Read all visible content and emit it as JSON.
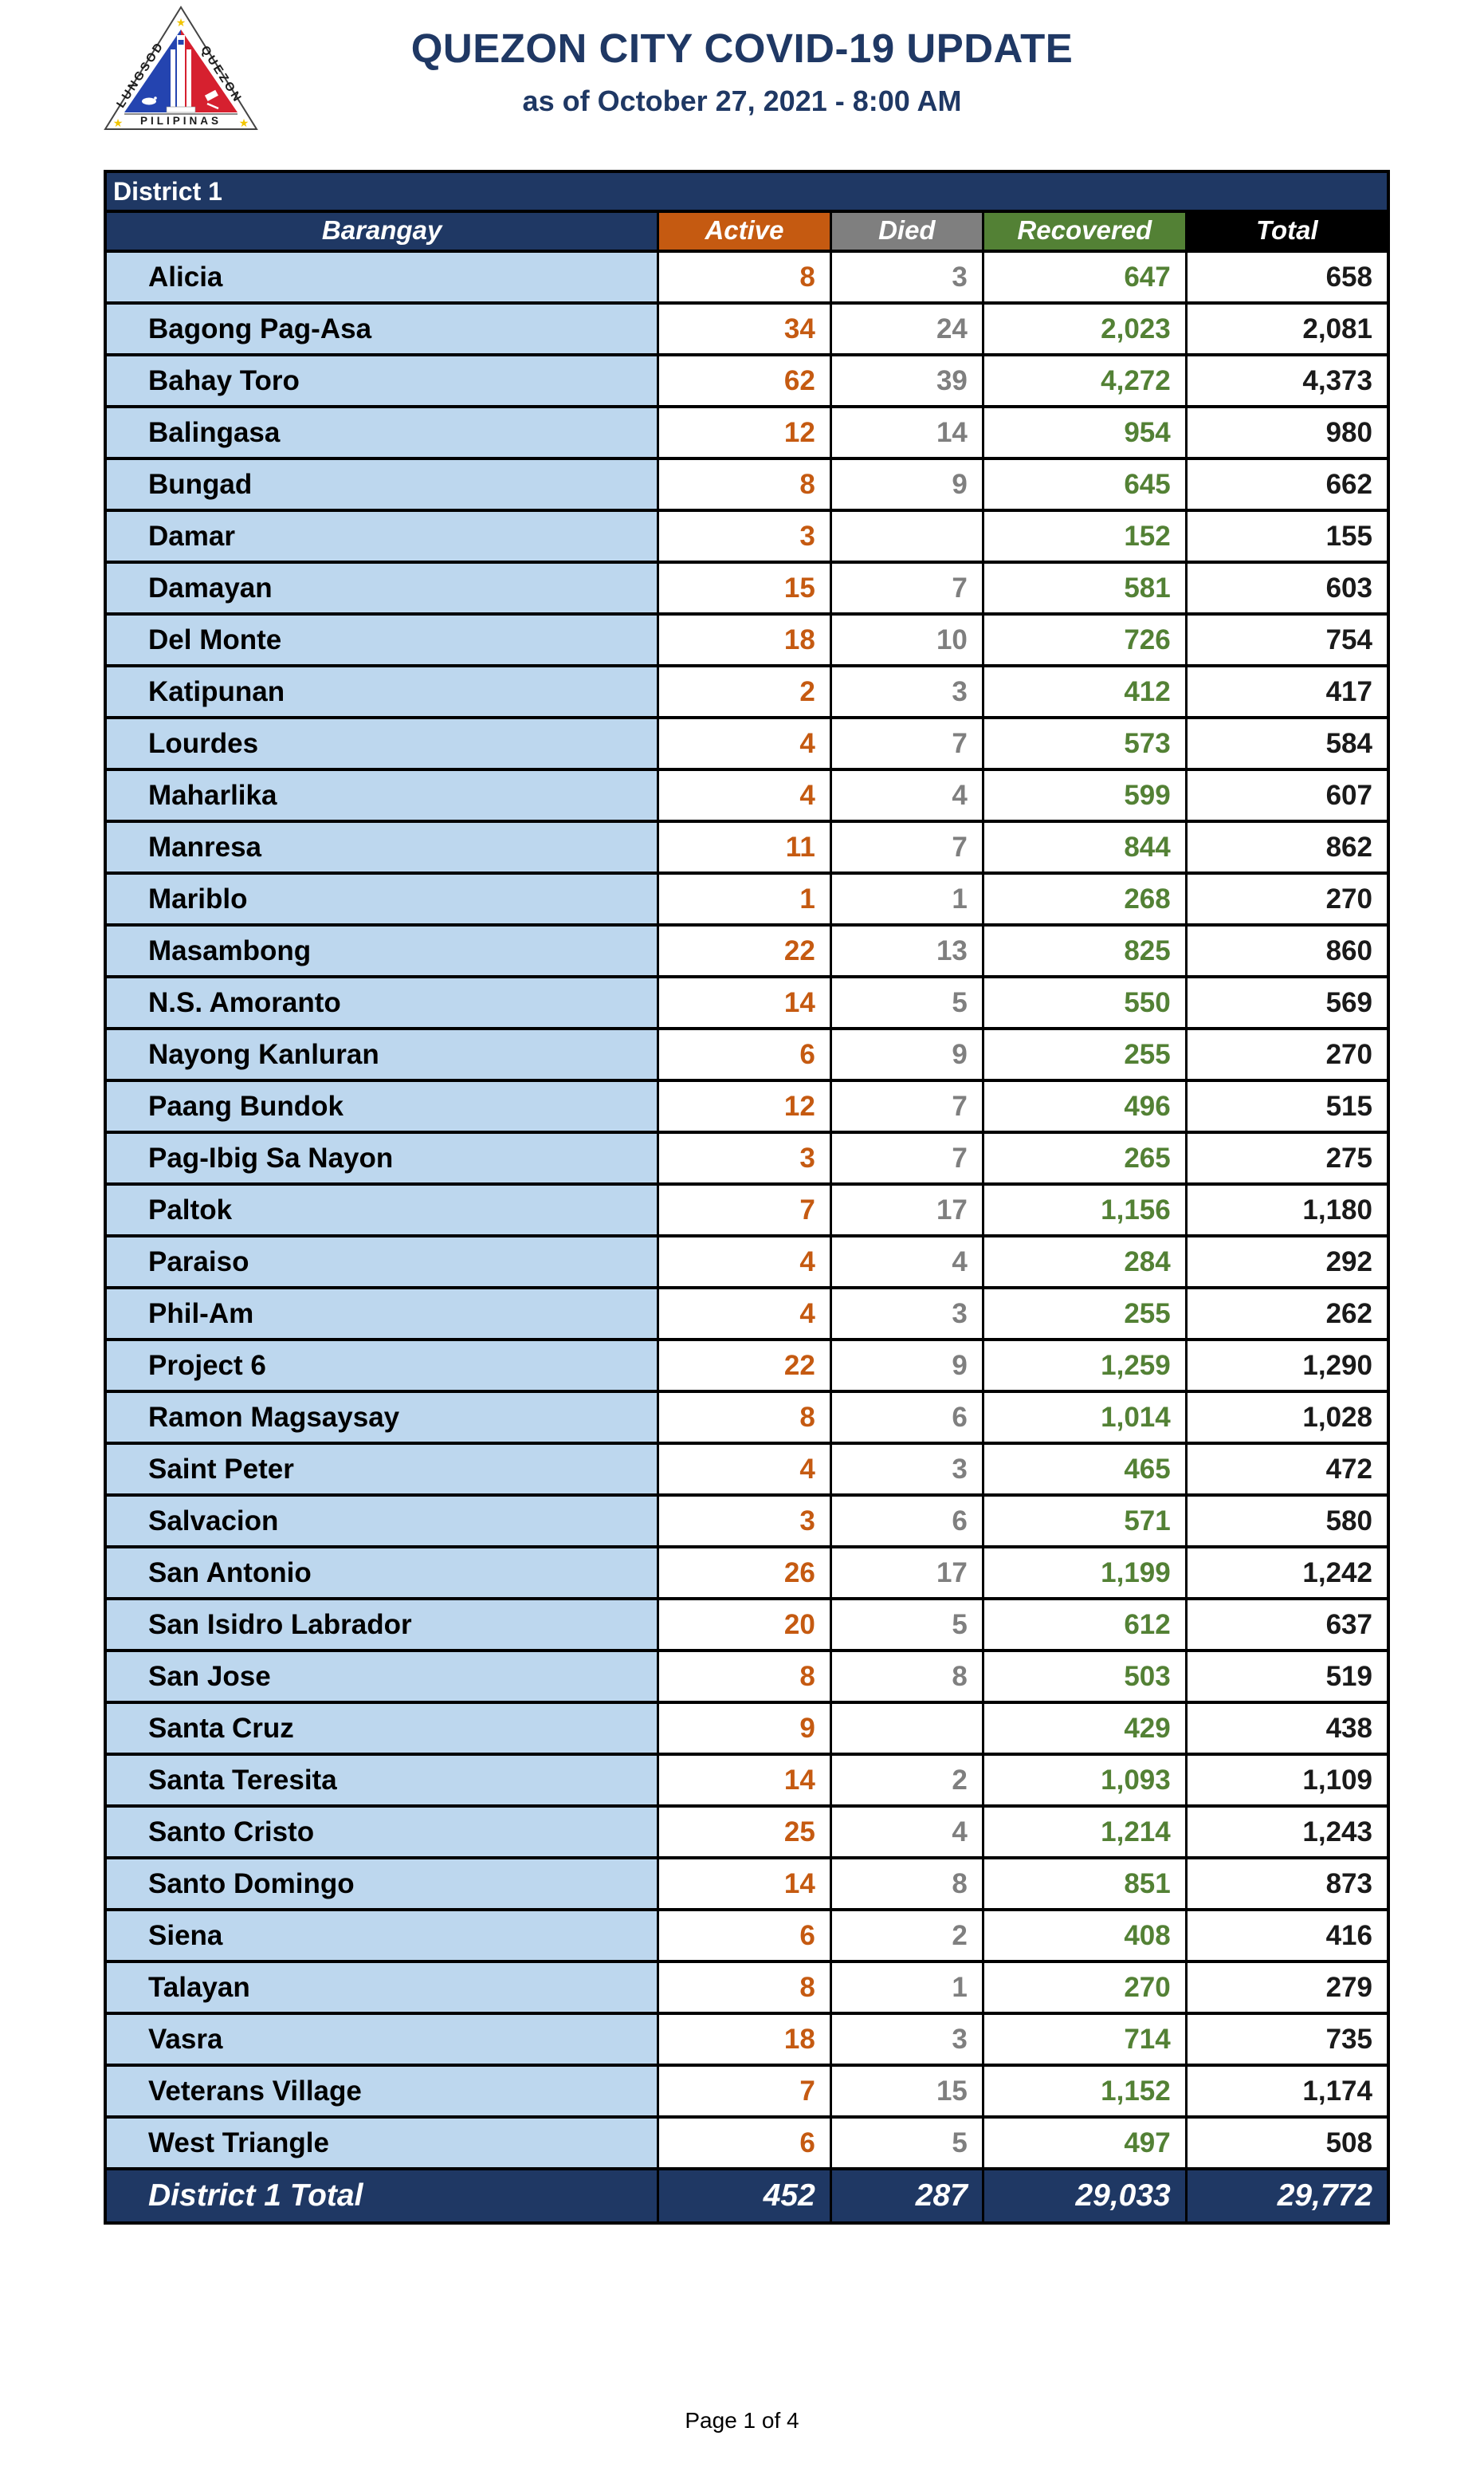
{
  "header": {
    "title": "QUEZON CITY COVID-19 UPDATE",
    "subtitle": "as of October 27, 2021 - 8:00 AM",
    "logo": {
      "left_text": "LUNGSOD",
      "right_text": "QUEZON",
      "bottom_text": "PILIPINAS"
    }
  },
  "table": {
    "district_label": "District 1",
    "columns": [
      "Barangay",
      "Active",
      "Died",
      "Recovered",
      "Total"
    ],
    "rows": [
      {
        "barangay": "Alicia",
        "active": "8",
        "died": "3",
        "recovered": "647",
        "total": "658"
      },
      {
        "barangay": "Bagong Pag-Asa",
        "active": "34",
        "died": "24",
        "recovered": "2,023",
        "total": "2,081"
      },
      {
        "barangay": "Bahay Toro",
        "active": "62",
        "died": "39",
        "recovered": "4,272",
        "total": "4,373"
      },
      {
        "barangay": "Balingasa",
        "active": "12",
        "died": "14",
        "recovered": "954",
        "total": "980"
      },
      {
        "barangay": "Bungad",
        "active": "8",
        "died": "9",
        "recovered": "645",
        "total": "662"
      },
      {
        "barangay": "Damar",
        "active": "3",
        "died": "",
        "recovered": "152",
        "total": "155"
      },
      {
        "barangay": "Damayan",
        "active": "15",
        "died": "7",
        "recovered": "581",
        "total": "603"
      },
      {
        "barangay": "Del Monte",
        "active": "18",
        "died": "10",
        "recovered": "726",
        "total": "754"
      },
      {
        "barangay": "Katipunan",
        "active": "2",
        "died": "3",
        "recovered": "412",
        "total": "417"
      },
      {
        "barangay": "Lourdes",
        "active": "4",
        "died": "7",
        "recovered": "573",
        "total": "584"
      },
      {
        "barangay": "Maharlika",
        "active": "4",
        "died": "4",
        "recovered": "599",
        "total": "607"
      },
      {
        "barangay": "Manresa",
        "active": "11",
        "died": "7",
        "recovered": "844",
        "total": "862"
      },
      {
        "barangay": "Mariblo",
        "active": "1",
        "died": "1",
        "recovered": "268",
        "total": "270"
      },
      {
        "barangay": "Masambong",
        "active": "22",
        "died": "13",
        "recovered": "825",
        "total": "860"
      },
      {
        "barangay": "N.S. Amoranto",
        "active": "14",
        "died": "5",
        "recovered": "550",
        "total": "569"
      },
      {
        "barangay": "Nayong Kanluran",
        "active": "6",
        "died": "9",
        "recovered": "255",
        "total": "270"
      },
      {
        "barangay": "Paang Bundok",
        "active": "12",
        "died": "7",
        "recovered": "496",
        "total": "515"
      },
      {
        "barangay": "Pag-Ibig Sa Nayon",
        "active": "3",
        "died": "7",
        "recovered": "265",
        "total": "275"
      },
      {
        "barangay": "Paltok",
        "active": "7",
        "died": "17",
        "recovered": "1,156",
        "total": "1,180"
      },
      {
        "barangay": "Paraiso",
        "active": "4",
        "died": "4",
        "recovered": "284",
        "total": "292"
      },
      {
        "barangay": "Phil-Am",
        "active": "4",
        "died": "3",
        "recovered": "255",
        "total": "262"
      },
      {
        "barangay": "Project 6",
        "active": "22",
        "died": "9",
        "recovered": "1,259",
        "total": "1,290"
      },
      {
        "barangay": "Ramon Magsaysay",
        "active": "8",
        "died": "6",
        "recovered": "1,014",
        "total": "1,028"
      },
      {
        "barangay": "Saint Peter",
        "active": "4",
        "died": "3",
        "recovered": "465",
        "total": "472"
      },
      {
        "barangay": "Salvacion",
        "active": "3",
        "died": "6",
        "recovered": "571",
        "total": "580"
      },
      {
        "barangay": "San Antonio",
        "active": "26",
        "died": "17",
        "recovered": "1,199",
        "total": "1,242"
      },
      {
        "barangay": "San Isidro Labrador",
        "active": "20",
        "died": "5",
        "recovered": "612",
        "total": "637"
      },
      {
        "barangay": "San Jose",
        "active": "8",
        "died": "8",
        "recovered": "503",
        "total": "519"
      },
      {
        "barangay": "Santa Cruz",
        "active": "9",
        "died": "",
        "recovered": "429",
        "total": "438"
      },
      {
        "barangay": "Santa Teresita",
        "active": "14",
        "died": "2",
        "recovered": "1,093",
        "total": "1,109"
      },
      {
        "barangay": "Santo Cristo",
        "active": "25",
        "died": "4",
        "recovered": "1,214",
        "total": "1,243"
      },
      {
        "barangay": "Santo Domingo",
        "active": "14",
        "died": "8",
        "recovered": "851",
        "total": "873"
      },
      {
        "barangay": "Siena",
        "active": "6",
        "died": "2",
        "recovered": "408",
        "total": "416"
      },
      {
        "barangay": "Talayan",
        "active": "8",
        "died": "1",
        "recovered": "270",
        "total": "279"
      },
      {
        "barangay": "Vasra",
        "active": "18",
        "died": "3",
        "recovered": "714",
        "total": "735"
      },
      {
        "barangay": "Veterans Village",
        "active": "7",
        "died": "15",
        "recovered": "1,152",
        "total": "1,174"
      },
      {
        "barangay": "West Triangle",
        "active": "6",
        "died": "5",
        "recovered": "497",
        "total": "508"
      }
    ],
    "total_row": {
      "label": "District 1 Total",
      "active": "452",
      "died": "287",
      "recovered": "29,033",
      "total": "29,772"
    }
  },
  "footer": {
    "page_label": "Page 1 of 4"
  },
  "colors": {
    "navy": "#1F3864",
    "active_orange": "#C55A11",
    "died_gray": "#7F7F7F",
    "recovered_green": "#538135",
    "total_black": "#000000",
    "row_light_blue": "#BDD7EE",
    "logo_blue": "#2444B0",
    "logo_red": "#D6202F",
    "logo_star_yellow": "#F2C500"
  }
}
